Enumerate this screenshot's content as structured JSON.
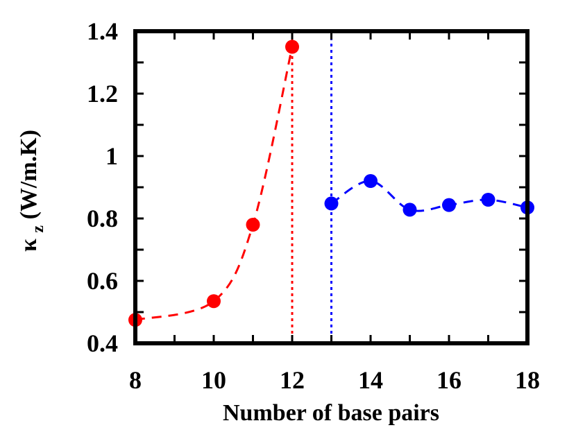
{
  "chart_data": {
    "type": "line",
    "title": "",
    "xlabel": "Number of base pairs",
    "ylabel": {
      "symbol": "κ",
      "subscript": "z",
      "units": "(W/m.K)"
    },
    "xlim": [
      8,
      18
    ],
    "ylim": [
      0.4,
      1.4
    ],
    "xticks": [
      8,
      10,
      12,
      14,
      16,
      18
    ],
    "xtick_labels": [
      "8",
      "10",
      "12",
      "14",
      "16",
      "18"
    ],
    "yticks": [
      0.4,
      0.6,
      0.8,
      1.0,
      1.2,
      1.4
    ],
    "ytick_labels": [
      "0.4",
      "0.6",
      "0.8",
      "1",
      "1.2",
      "1.4"
    ],
    "grid": false,
    "legend": "none",
    "series": [
      {
        "color": "#ff0000",
        "line_style": "dashed",
        "marker": "circle",
        "x": [
          8,
          10,
          11,
          12
        ],
        "y": [
          0.475,
          0.535,
          0.78,
          1.35
        ]
      },
      {
        "color": "#0000ff",
        "line_style": "dashed",
        "marker": "circle",
        "x": [
          13,
          14,
          15,
          16,
          17,
          18
        ],
        "y": [
          0.848,
          0.92,
          0.828,
          0.843,
          0.86,
          0.835
        ]
      }
    ],
    "vertical_lines": [
      {
        "x": 12,
        "color": "#ff0000",
        "style": "dotted"
      },
      {
        "x": 13,
        "color": "#0000ff",
        "style": "dotted"
      }
    ]
  }
}
